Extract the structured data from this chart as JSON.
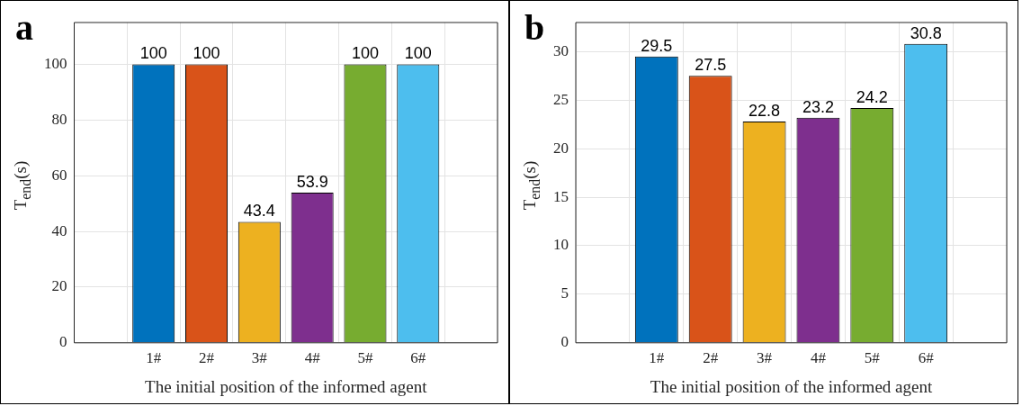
{
  "chart_data": [
    {
      "type": "bar",
      "annotations": [
        "a"
      ],
      "xlabel": "The initial position of the informed agent",
      "ylabel": "T$_{end}$(s)",
      "categories": [
        null,
        "1#",
        "2#",
        "3#",
        "4#",
        "5#",
        "6#",
        null
      ],
      "values": [
        null,
        100,
        100,
        43.4,
        53.9,
        100,
        100,
        null
      ],
      "colors": [
        "#0072bd",
        "#0072bd",
        "#d95319",
        "#edb120",
        "#7e2f8e",
        "#77ac30",
        "#4dbeee",
        "#0072bd"
      ],
      "ylim": [
        0,
        115
      ],
      "yticks": [
        0,
        20,
        40,
        60,
        80,
        100
      ],
      "grid": true,
      "data_labels": true
    },
    {
      "type": "bar",
      "annotations": [
        "b"
      ],
      "xlabel": "The initial position of the informed agent",
      "ylabel": "T$_{end}$(s)",
      "categories": [
        null,
        "1#",
        "2#",
        "3#",
        "4#",
        "5#",
        "6#",
        null
      ],
      "values": [
        null,
        29.5,
        27.5,
        22.8,
        23.2,
        24.2,
        30.8,
        null
      ],
      "colors": [
        "#0072bd",
        "#0072bd",
        "#d95319",
        "#edb120",
        "#7e2f8e",
        "#77ac30",
        "#4dbeee",
        "#0072bd"
      ],
      "ylim": [
        0,
        33
      ],
      "yticks": [
        0,
        5,
        10,
        15,
        20,
        25,
        30
      ],
      "grid": true,
      "data_labels": true
    }
  ]
}
